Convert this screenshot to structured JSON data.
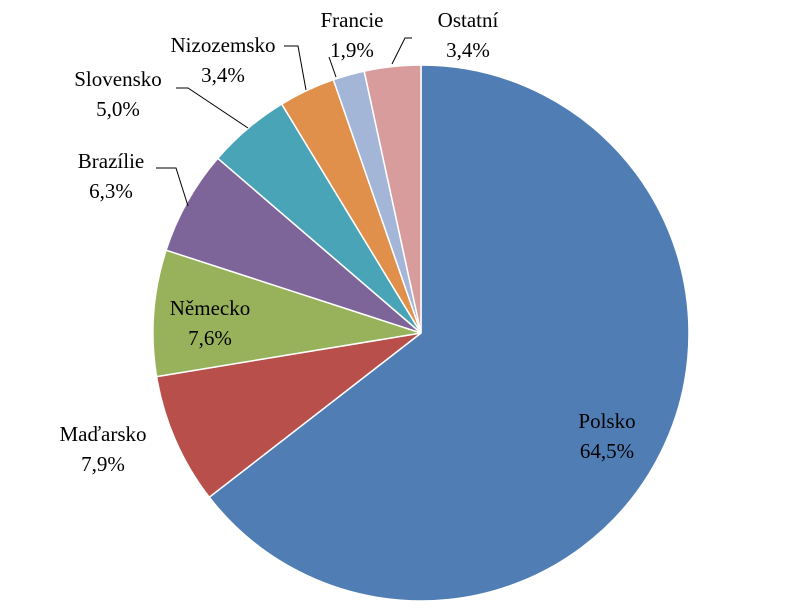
{
  "chart_data": {
    "type": "pie",
    "start_angle_deg": 0,
    "direction": "clockwise",
    "slices": [
      {
        "name": "Polsko",
        "value": 64.5,
        "label": "64,5%",
        "color": "#4f7db4"
      },
      {
        "name": "Maďarsko",
        "value": 7.9,
        "label": "7,9%",
        "color": "#b84f4b"
      },
      {
        "name": "Německo",
        "value": 7.6,
        "label": "7,6%",
        "color": "#98b25b"
      },
      {
        "name": "Brazílie",
        "value": 6.3,
        "label": "6,3%",
        "color": "#7e6599"
      },
      {
        "name": "Slovensko",
        "value": 5.0,
        "label": "5,0%",
        "color": "#4aa4b8"
      },
      {
        "name": "Nizozemsko",
        "value": 3.4,
        "label": "3,4%",
        "color": "#e0904b"
      },
      {
        "name": "Francie",
        "value": 1.9,
        "label": "1,9%",
        "color": "#a3b6d8"
      },
      {
        "name": "Ostatní",
        "value": 3.4,
        "label": "3,4%",
        "color": "#d79c9b"
      }
    ],
    "legend": "none"
  }
}
